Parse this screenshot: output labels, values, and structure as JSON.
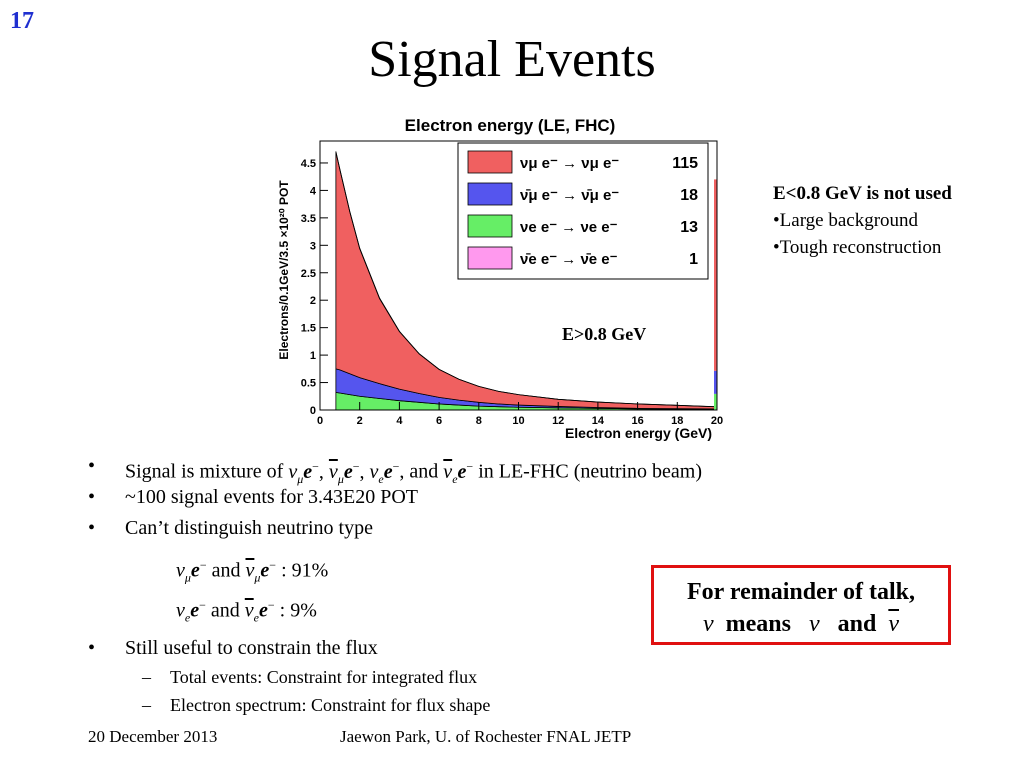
{
  "slide": {
    "number": "17",
    "title": "Signal Events"
  },
  "chart_data": {
    "type": "area",
    "stacked": true,
    "title": "Electron energy (LE, FHC)",
    "xlabel": "Electron energy (GeV)",
    "ylabel": "Electrons/0.1GeV/3.5 ×10²⁰ POT",
    "xlim": [
      0,
      20
    ],
    "ylim": [
      0,
      4.9
    ],
    "x_ticks": [
      "0",
      "2",
      "4",
      "6",
      "8",
      "10",
      "12",
      "14",
      "16",
      "18",
      "20"
    ],
    "y_ticks": [
      "0",
      "0.5",
      "1",
      "1.5",
      "2",
      "2.5",
      "3",
      "3.5",
      "4",
      "4.5"
    ],
    "x": [
      0.8,
      1,
      1.5,
      2,
      3,
      4,
      5,
      6,
      7,
      8,
      9,
      10,
      12,
      14,
      16,
      18,
      19.9
    ],
    "series": [
      {
        "name": "νe e⁻ → νe e⁻",
        "color": "#66ee66",
        "legend_value": "13",
        "values": [
          0.32,
          0.31,
          0.28,
          0.25,
          0.21,
          0.17,
          0.14,
          0.11,
          0.09,
          0.07,
          0.06,
          0.05,
          0.04,
          0.03,
          0.02,
          0.015,
          0.01
        ]
      },
      {
        "name": "ν̄μ e⁻ → ν̄μ e⁻",
        "color": "#5555ee",
        "legend_value": "18",
        "values": [
          0.43,
          0.42,
          0.38,
          0.34,
          0.27,
          0.21,
          0.16,
          0.12,
          0.09,
          0.07,
          0.05,
          0.04,
          0.025,
          0.015,
          0.01,
          0.01,
          0.01
        ]
      },
      {
        "name": "νμ e⁻ → νμ e⁻",
        "color": "#f06060",
        "legend_value": "115",
        "values": [
          3.95,
          3.65,
          2.95,
          2.35,
          1.55,
          1.05,
          0.72,
          0.51,
          0.38,
          0.29,
          0.23,
          0.19,
          0.13,
          0.1,
          0.08,
          0.06,
          0.04
        ]
      },
      {
        "name": "ν̄e e⁻ → ν̄e e⁻",
        "color": "#ff99ee",
        "legend_value": "1",
        "values": [
          0.01,
          0.01,
          0.01,
          0.01,
          0.01,
          0.005,
          0.005,
          0,
          0,
          0,
          0,
          0,
          0,
          0,
          0,
          0,
          0
        ]
      }
    ],
    "overflow_bin": {
      "x": 20,
      "total": 4.2
    },
    "annotation": "E>0.8 GeV",
    "legend_placement": "top-right"
  },
  "side_notes": {
    "heading": "E<0.8 GeV is not used",
    "items": [
      "•Large background",
      "•Tough reconstruction"
    ]
  },
  "bullets": {
    "b1_prefix": "Signal is mixture of",
    "b1_and": ", and",
    "b1_suffix": "in LE-FHC (neutrino beam)",
    "b2": "~100 signal events for 3.43E20 POT",
    "b3": "Can’t distinguish neutrino type",
    "math1_and": "and",
    "math1_value": ": 91%",
    "math2_and": "and",
    "math2_value": ": 9%",
    "b4": "Still useful to constrain the flux",
    "sub1": "Total events:  Constraint for integrated flux",
    "sub2": "Electron spectrum: Constraint for flux shape"
  },
  "remainder_box": {
    "line1": "For remainder of talk,",
    "means": "means",
    "and": "and"
  },
  "footer": {
    "date": "20 December 2013",
    "author": "Jaewon Park, U. of Rochester  FNAL JETP"
  }
}
